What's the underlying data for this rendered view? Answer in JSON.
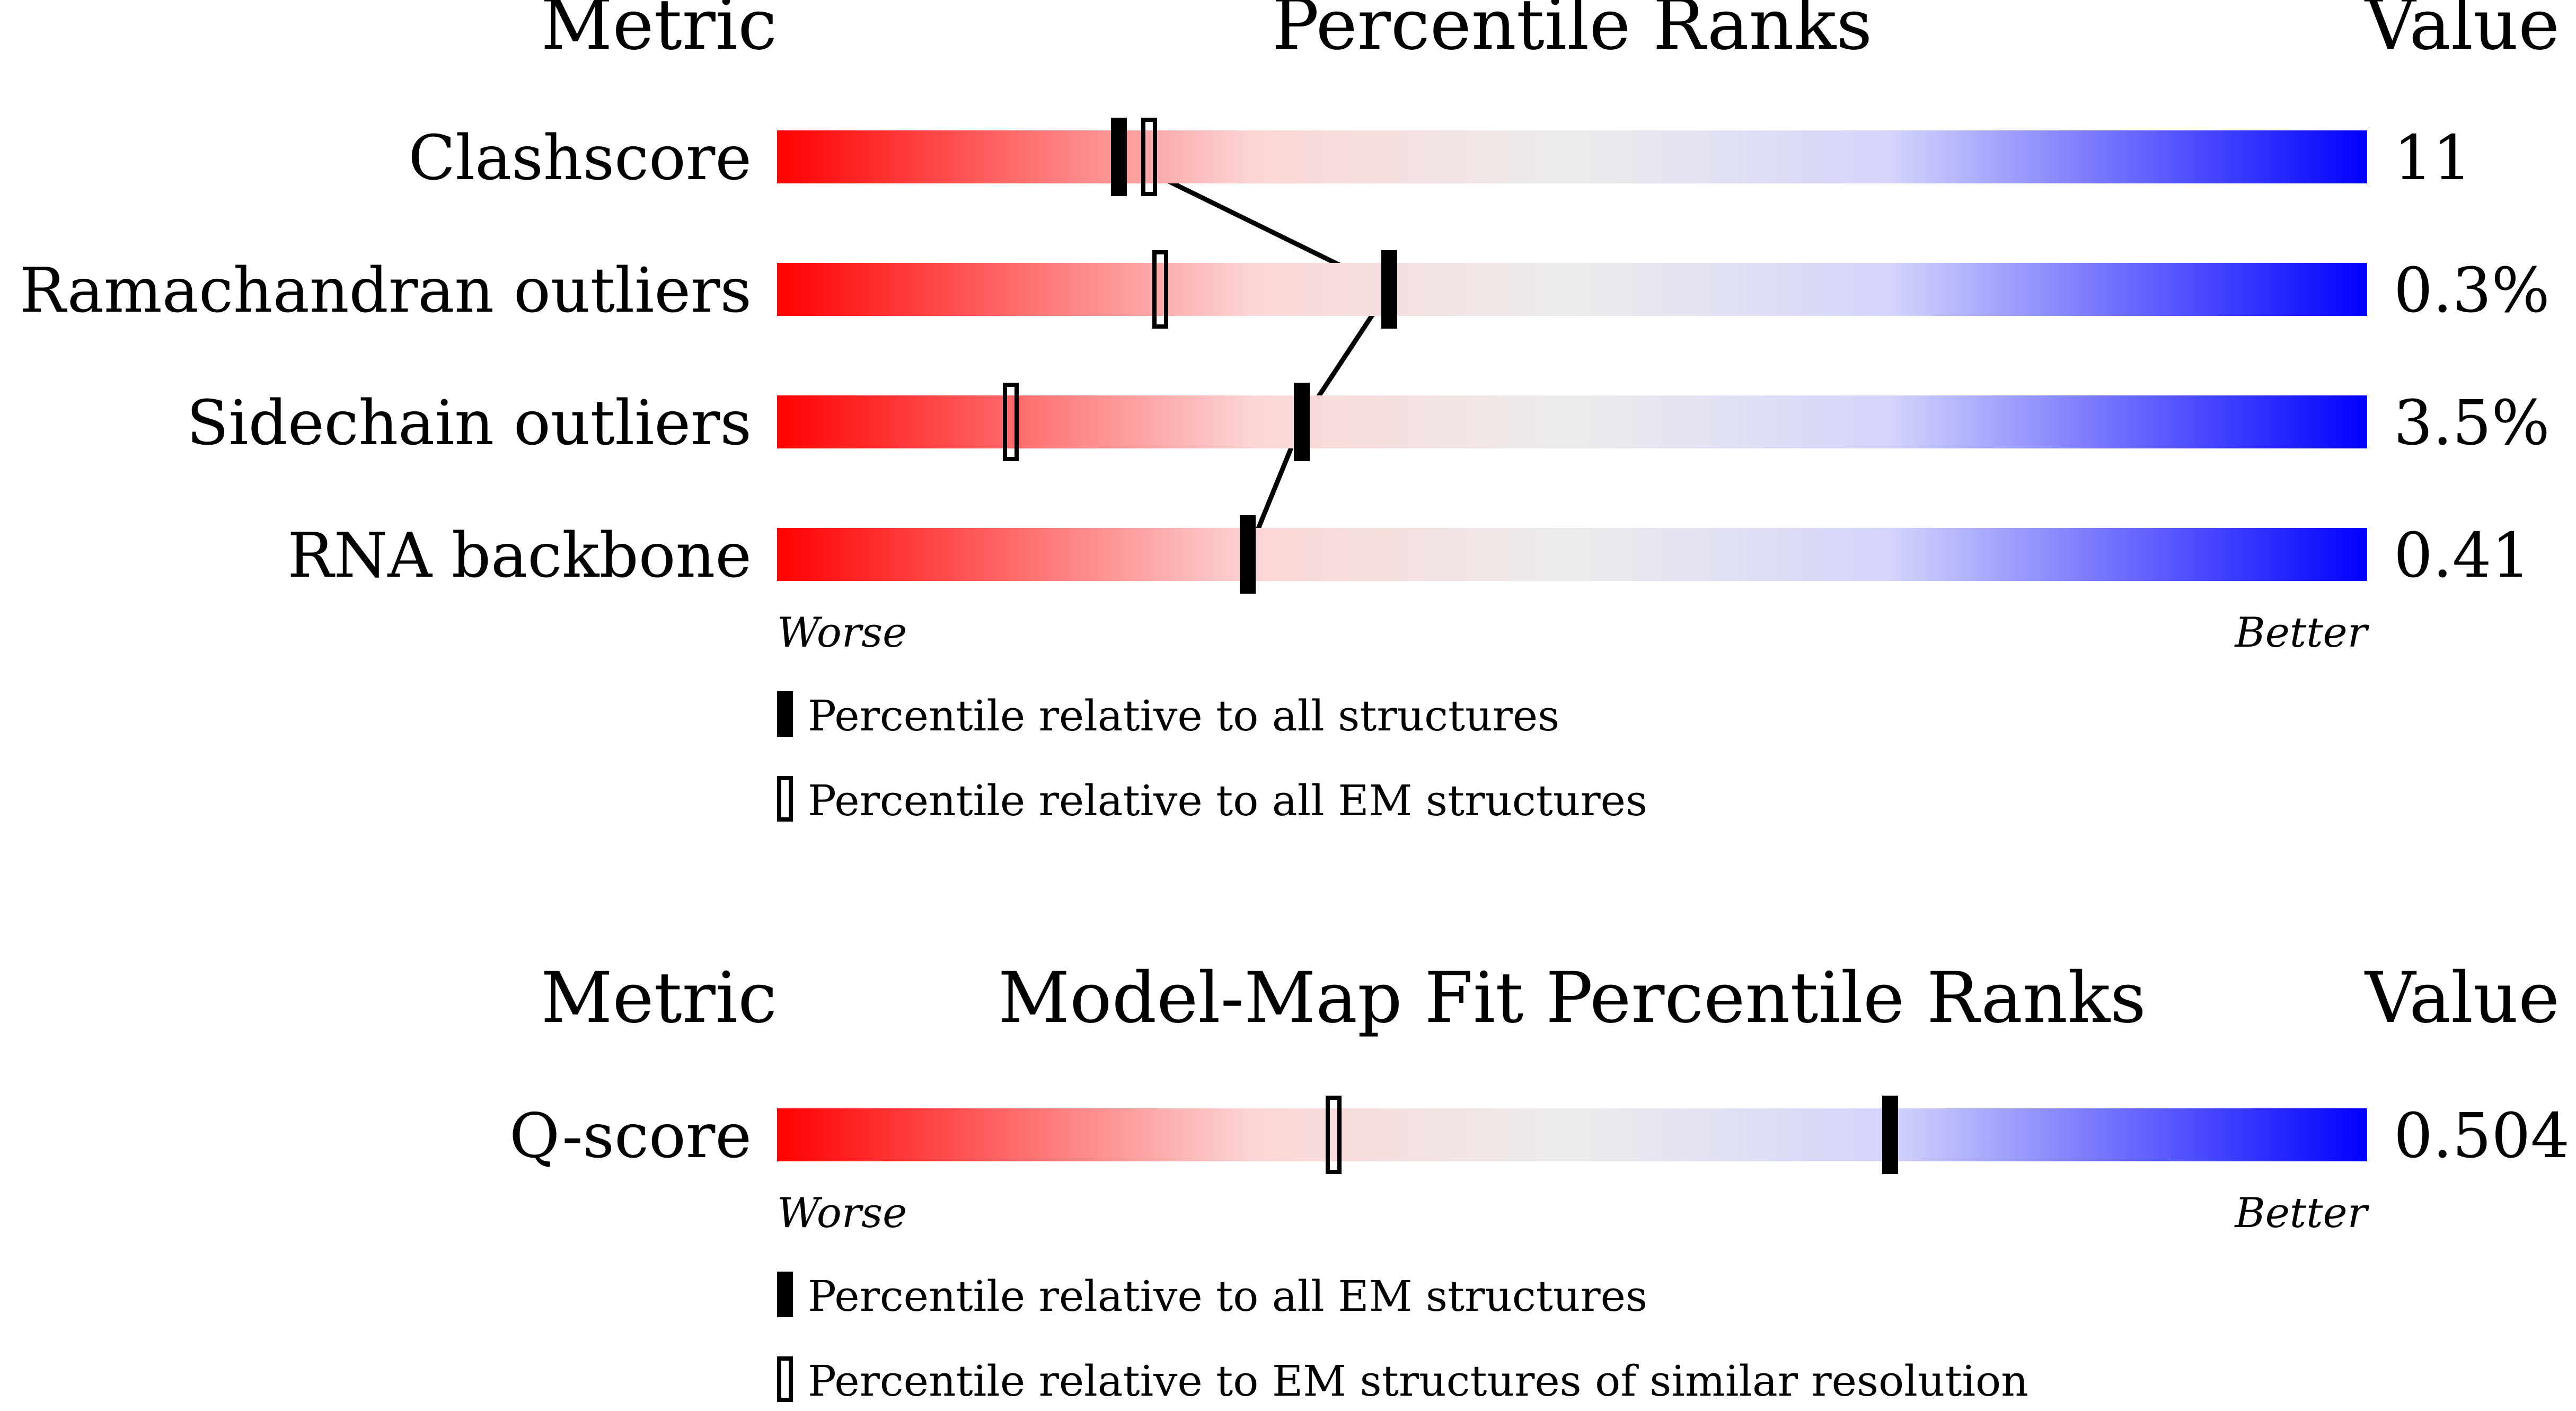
{
  "colors": {
    "worse": "#ff0000",
    "mid_light": "#fcd6d6",
    "mid_neutral": "#ececec",
    "light_blue": "#d4d4fc",
    "better": "#0000ff",
    "marker": "#000000"
  },
  "chart_data": [
    {
      "type": "percentile-slider",
      "headers": {
        "metric": "Metric",
        "title": "Percentile Ranks",
        "value": "Value"
      },
      "scale_range": [
        0,
        100
      ],
      "scale_labels": {
        "worse": "Worse",
        "better": "Better"
      },
      "legend": {
        "solid": "Percentile relative to all structures",
        "open": "Percentile relative to all EM structures"
      },
      "rows": [
        {
          "metric": "Clashscore",
          "value": "11",
          "percentile_all": 21.5,
          "percentile_em": 23.4
        },
        {
          "metric": "Ramachandran outliers",
          "value": "0.3%",
          "percentile_all": 38.5,
          "percentile_em": 24.1
        },
        {
          "metric": "Sidechain outliers",
          "value": "3.5%",
          "percentile_all": 33.0,
          "percentile_em": 14.7
        },
        {
          "metric": "RNA backbone",
          "value": "0.41",
          "percentile_all": 29.6,
          "percentile_em": null
        }
      ]
    },
    {
      "type": "percentile-slider",
      "headers": {
        "metric": "Metric",
        "title": "Model-Map Fit Percentile Ranks",
        "value": "Value"
      },
      "scale_range": [
        0,
        100
      ],
      "scale_labels": {
        "worse": "Worse",
        "better": "Better"
      },
      "legend": {
        "solid": "Percentile relative to all EM structures",
        "open": "Percentile relative to EM structures of similar resolution"
      },
      "rows": [
        {
          "metric": "Q-score",
          "value": "0.504",
          "percentile_all": 70.0,
          "percentile_em": 35.0
        }
      ]
    }
  ]
}
